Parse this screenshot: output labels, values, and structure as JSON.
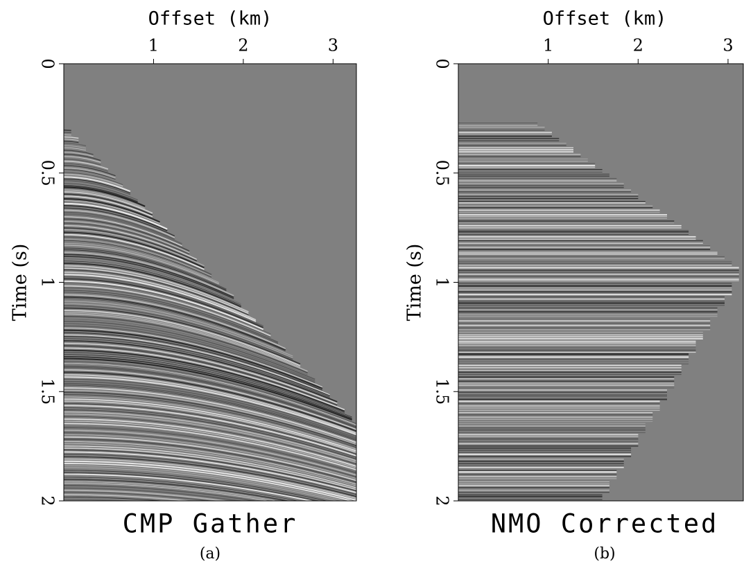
{
  "chart_data": [
    {
      "type": "image",
      "title": "CMP Gather",
      "caption": "(a)",
      "xlabel": "Offset (km)",
      "ylabel": "Time (s)",
      "xlim": [
        0,
        3.26
      ],
      "xticks": [
        1,
        2,
        3
      ],
      "ylim": [
        0,
        2
      ],
      "yticks": [
        0,
        0.5,
        1,
        1.5,
        2
      ]
    },
    {
      "type": "image",
      "title": "NMO Corrected",
      "caption": "(b)",
      "xlabel": "Offset (km)",
      "ylabel": "Time (s)",
      "xlim": [
        0,
        3.17
      ],
      "xticks": [
        1,
        2,
        3
      ],
      "ylim": [
        0,
        2
      ],
      "yticks": [
        0,
        0.5,
        1,
        1.5,
        2
      ]
    }
  ]
}
